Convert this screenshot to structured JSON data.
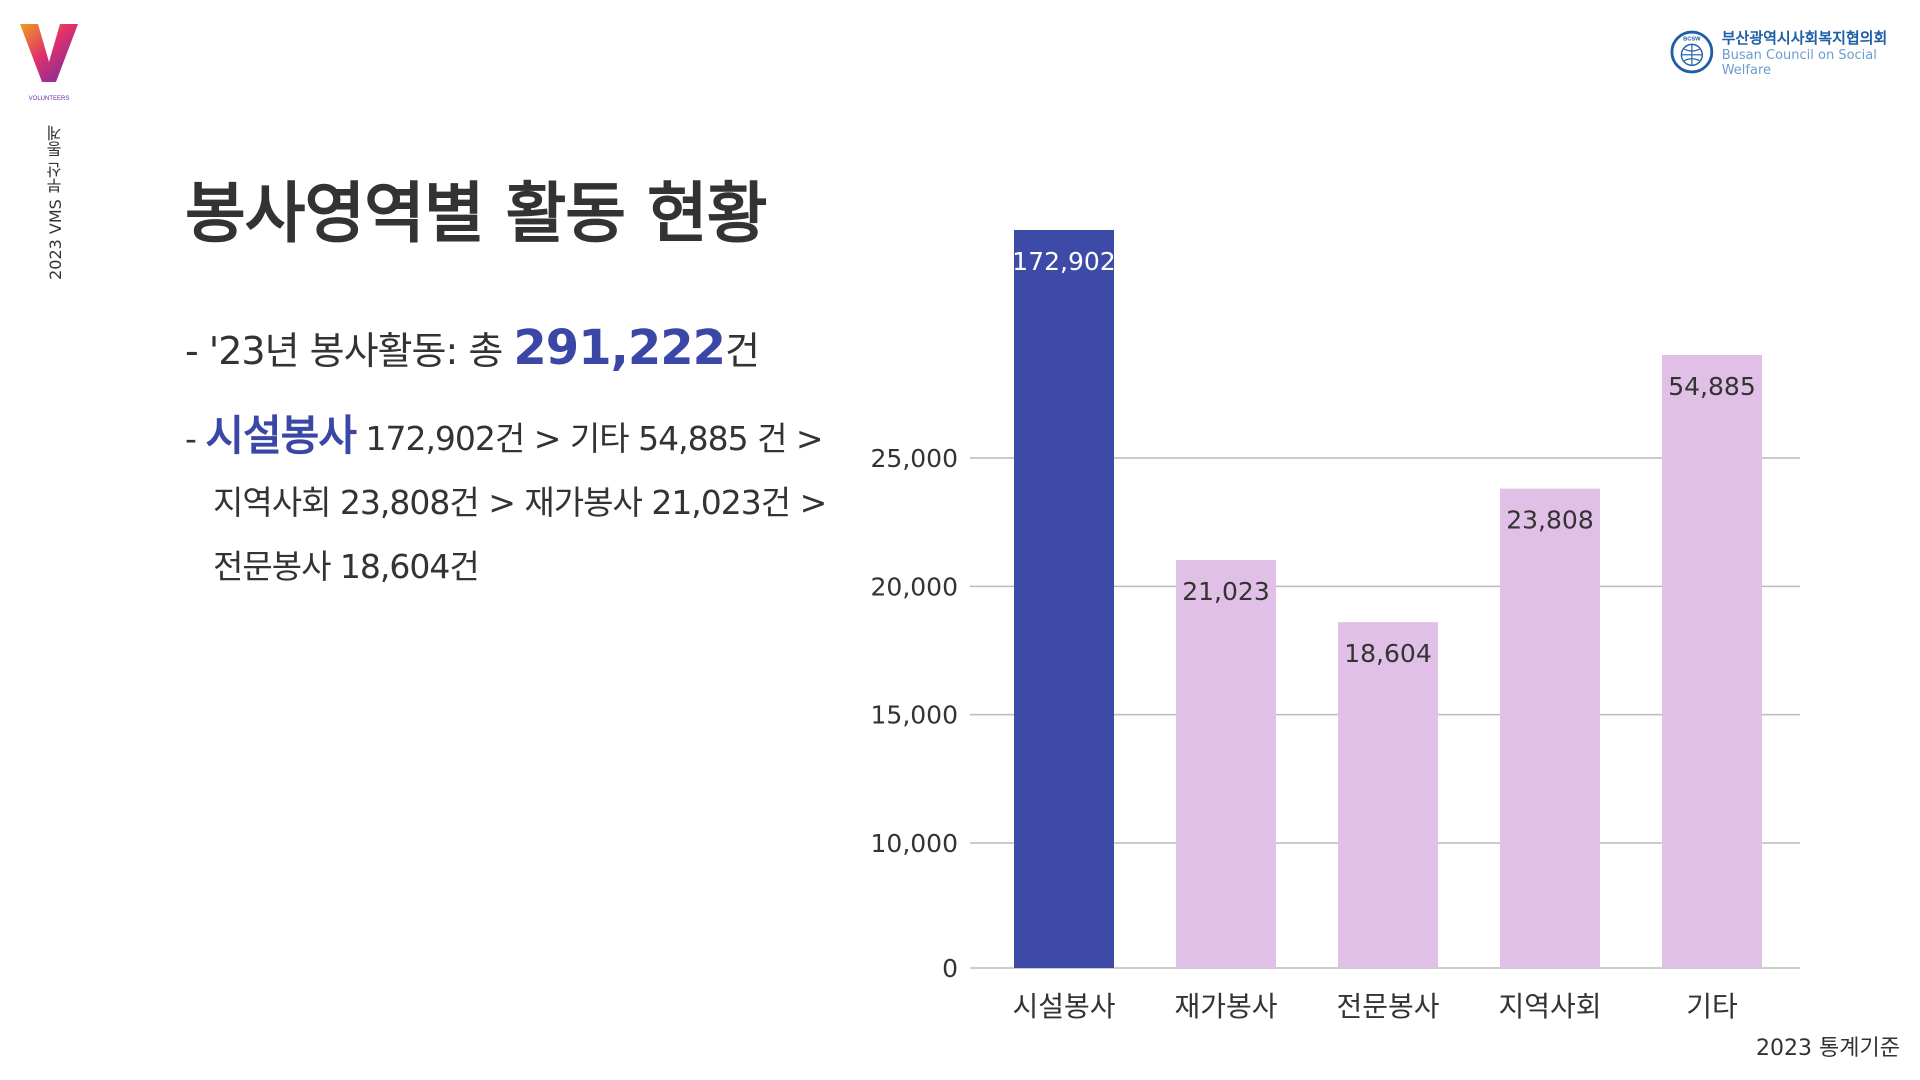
{
  "header": {
    "side_caption": "2023 VMS 부산 통계",
    "org_name": "부산광역시사회복지협의회",
    "org_name_en": "Busan Council on Social Welfare",
    "org_badge": "BCSW",
    "logo_subtext": "VOLUNTEERS"
  },
  "title": "봉사영역별 활동 현황",
  "summary": {
    "line1_prefix": "- '23년 봉사활동: 총 ",
    "line1_total": "291,222",
    "line1_suffix": "건",
    "ranking_dash": "- ",
    "ranking_highlight": "시설봉사",
    "ranking_rest_1": " 172,902건 > 기타 54,885 건 >",
    "ranking_line_2": "지역사회 23,808건 > 재가봉사 21,023건 >",
    "ranking_line_3": "전문봉사 18,604건"
  },
  "footnote": "2023 통계기준",
  "colors": {
    "primary_bar": "#3d4aa8",
    "secondary_bar": "#e0c0e6",
    "gridline": "#bbbbbb",
    "accent_text": "#3b47a6"
  },
  "chart_data": {
    "type": "bar",
    "categories": [
      "시설봉사",
      "재가봉사",
      "전문봉사",
      "지역사회",
      "기타"
    ],
    "values": [
      172902,
      21023,
      18604,
      23808,
      54885
    ],
    "data_labels": [
      "172,902",
      "21,023",
      "18,604",
      "23,808",
      "54,885"
    ],
    "yticks": [
      0,
      10000,
      15000,
      20000,
      25000
    ],
    "ytick_labels": [
      "0",
      "10,000",
      "15,000",
      "20,000",
      "25,000"
    ],
    "axis_break": true,
    "highlight_index": 0,
    "grid": true,
    "title": "",
    "xlabel": "",
    "ylabel": ""
  }
}
